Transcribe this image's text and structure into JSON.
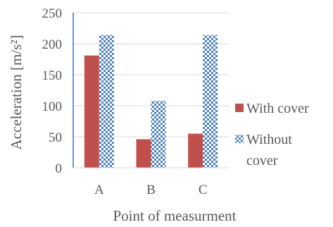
{
  "chart_data": {
    "type": "bar",
    "categories": [
      "A",
      "B",
      "C"
    ],
    "series": [
      {
        "name": "With cover",
        "values": [
          181,
          46,
          55
        ],
        "color": "#c0504d",
        "pattern": "solid"
      },
      {
        "name": "Without cover",
        "values": [
          214,
          108,
          214
        ],
        "color": "#4f81bd",
        "pattern": "checker"
      }
    ],
    "ylabel": "Acceleration [m/s²]",
    "xlabel": "Point of measurment",
    "ylim": [
      0,
      250
    ],
    "yticks": [
      0,
      50,
      100,
      150,
      200,
      250
    ],
    "grid": true,
    "legend_placement": "right"
  },
  "legend": {
    "with_cover": "With cover",
    "without_cover_line1": "Without",
    "without_cover_line2": "cover"
  }
}
